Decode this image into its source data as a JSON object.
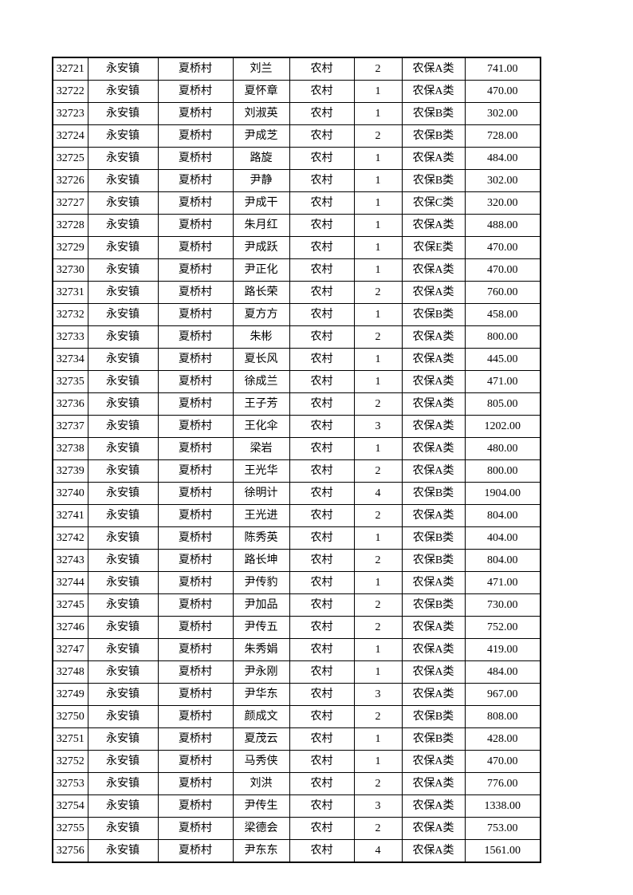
{
  "page": {
    "background_color": "#ffffff",
    "text_color": "#000000",
    "border_color": "#000000"
  },
  "table": {
    "rows": [
      [
        "32721",
        "永安镇",
        "夏桥村",
        "刘兰",
        "农村",
        "2",
        "农保A类",
        "741.00"
      ],
      [
        "32722",
        "永安镇",
        "夏桥村",
        "夏怀章",
        "农村",
        "1",
        "农保A类",
        "470.00"
      ],
      [
        "32723",
        "永安镇",
        "夏桥村",
        "刘淑英",
        "农村",
        "1",
        "农保B类",
        "302.00"
      ],
      [
        "32724",
        "永安镇",
        "夏桥村",
        "尹成芝",
        "农村",
        "2",
        "农保B类",
        "728.00"
      ],
      [
        "32725",
        "永安镇",
        "夏桥村",
        "路旋",
        "农村",
        "1",
        "农保A类",
        "484.00"
      ],
      [
        "32726",
        "永安镇",
        "夏桥村",
        "尹静",
        "农村",
        "1",
        "农保B类",
        "302.00"
      ],
      [
        "32727",
        "永安镇",
        "夏桥村",
        "尹成干",
        "农村",
        "1",
        "农保C类",
        "320.00"
      ],
      [
        "32728",
        "永安镇",
        "夏桥村",
        "朱月红",
        "农村",
        "1",
        "农保A类",
        "488.00"
      ],
      [
        "32729",
        "永安镇",
        "夏桥村",
        "尹成跃",
        "农村",
        "1",
        "农保E类",
        "470.00"
      ],
      [
        "32730",
        "永安镇",
        "夏桥村",
        "尹正化",
        "农村",
        "1",
        "农保A类",
        "470.00"
      ],
      [
        "32731",
        "永安镇",
        "夏桥村",
        "路长荣",
        "农村",
        "2",
        "农保A类",
        "760.00"
      ],
      [
        "32732",
        "永安镇",
        "夏桥村",
        "夏方方",
        "农村",
        "1",
        "农保B类",
        "458.00"
      ],
      [
        "32733",
        "永安镇",
        "夏桥村",
        "朱彬",
        "农村",
        "2",
        "农保A类",
        "800.00"
      ],
      [
        "32734",
        "永安镇",
        "夏桥村",
        "夏长风",
        "农村",
        "1",
        "农保A类",
        "445.00"
      ],
      [
        "32735",
        "永安镇",
        "夏桥村",
        "徐成兰",
        "农村",
        "1",
        "农保A类",
        "471.00"
      ],
      [
        "32736",
        "永安镇",
        "夏桥村",
        "王子芳",
        "农村",
        "2",
        "农保A类",
        "805.00"
      ],
      [
        "32737",
        "永安镇",
        "夏桥村",
        "王化伞",
        "农村",
        "3",
        "农保A类",
        "1202.00"
      ],
      [
        "32738",
        "永安镇",
        "夏桥村",
        "梁岩",
        "农村",
        "1",
        "农保A类",
        "480.00"
      ],
      [
        "32739",
        "永安镇",
        "夏桥村",
        "王光华",
        "农村",
        "2",
        "农保A类",
        "800.00"
      ],
      [
        "32740",
        "永安镇",
        "夏桥村",
        "徐明计",
        "农村",
        "4",
        "农保B类",
        "1904.00"
      ],
      [
        "32741",
        "永安镇",
        "夏桥村",
        "王光进",
        "农村",
        "2",
        "农保A类",
        "804.00"
      ],
      [
        "32742",
        "永安镇",
        "夏桥村",
        "陈秀英",
        "农村",
        "1",
        "农保B类",
        "404.00"
      ],
      [
        "32743",
        "永安镇",
        "夏桥村",
        "路长坤",
        "农村",
        "2",
        "农保B类",
        "804.00"
      ],
      [
        "32744",
        "永安镇",
        "夏桥村",
        "尹传豹",
        "农村",
        "1",
        "农保A类",
        "471.00"
      ],
      [
        "32745",
        "永安镇",
        "夏桥村",
        "尹加品",
        "农村",
        "2",
        "农保B类",
        "730.00"
      ],
      [
        "32746",
        "永安镇",
        "夏桥村",
        "尹传五",
        "农村",
        "2",
        "农保A类",
        "752.00"
      ],
      [
        "32747",
        "永安镇",
        "夏桥村",
        "朱秀娟",
        "农村",
        "1",
        "农保A类",
        "419.00"
      ],
      [
        "32748",
        "永安镇",
        "夏桥村",
        "尹永刚",
        "农村",
        "1",
        "农保A类",
        "484.00"
      ],
      [
        "32749",
        "永安镇",
        "夏桥村",
        "尹华东",
        "农村",
        "3",
        "农保A类",
        "967.00"
      ],
      [
        "32750",
        "永安镇",
        "夏桥村",
        "颜成文",
        "农村",
        "2",
        "农保B类",
        "808.00"
      ],
      [
        "32751",
        "永安镇",
        "夏桥村",
        "夏茂云",
        "农村",
        "1",
        "农保B类",
        "428.00"
      ],
      [
        "32752",
        "永安镇",
        "夏桥村",
        "马秀侠",
        "农村",
        "1",
        "农保A类",
        "470.00"
      ],
      [
        "32753",
        "永安镇",
        "夏桥村",
        "刘洪",
        "农村",
        "2",
        "农保A类",
        "776.00"
      ],
      [
        "32754",
        "永安镇",
        "夏桥村",
        "尹传生",
        "农村",
        "3",
        "农保A类",
        "1338.00"
      ],
      [
        "32755",
        "永安镇",
        "夏桥村",
        "梁德会",
        "农村",
        "2",
        "农保A类",
        "753.00"
      ],
      [
        "32756",
        "永安镇",
        "夏桥村",
        "尹东东",
        "农村",
        "4",
        "农保A类",
        "1561.00"
      ]
    ]
  }
}
